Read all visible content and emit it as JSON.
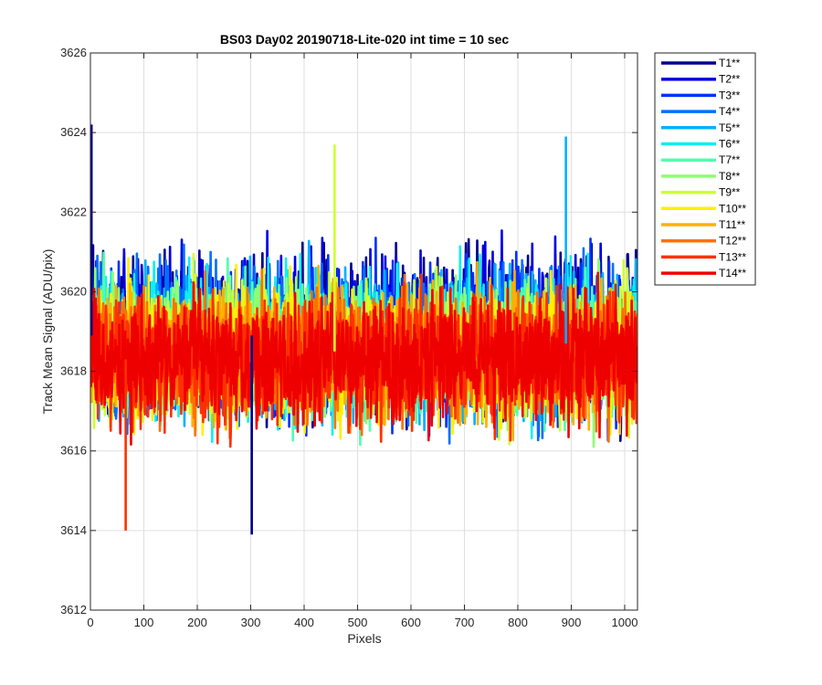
{
  "chart_data": {
    "type": "line",
    "title": "BS03 Day02 20190718-Lite-020 int time = 10 sec",
    "xlabel": "Pixels",
    "ylabel": "Track Mean Signal (ADU/pix)",
    "xlim": [
      0,
      1024
    ],
    "ylim": [
      3612,
      3626
    ],
    "xticks": [
      0,
      100,
      200,
      300,
      400,
      500,
      600,
      700,
      800,
      900,
      1000
    ],
    "yticks": [
      3612,
      3614,
      3616,
      3618,
      3620,
      3622,
      3624,
      3626
    ],
    "grid": true,
    "legend_position": "outside-right-top",
    "n_points_per_series": 1024,
    "series": [
      {
        "name": "T1**",
        "color": "#00008f",
        "center": 3618.9,
        "spread": 1.55
      },
      {
        "name": "T2**",
        "color": "#0000df",
        "center": 3618.9,
        "spread": 1.5
      },
      {
        "name": "T3**",
        "color": "#0030ff",
        "center": 3618.8,
        "spread": 1.45
      },
      {
        "name": "T4**",
        "color": "#0070ff",
        "center": 3618.8,
        "spread": 1.4
      },
      {
        "name": "T5**",
        "color": "#00b0ff",
        "center": 3618.7,
        "spread": 1.4
      },
      {
        "name": "T6**",
        "color": "#10efef",
        "center": 3618.7,
        "spread": 1.35
      },
      {
        "name": "T7**",
        "color": "#50ffaf",
        "center": 3618.6,
        "spread": 1.35
      },
      {
        "name": "T8**",
        "color": "#8fff70",
        "center": 3618.6,
        "spread": 1.3
      },
      {
        "name": "T9**",
        "color": "#cfff30",
        "center": 3618.5,
        "spread": 1.3
      },
      {
        "name": "T10**",
        "color": "#ffef00",
        "center": 3618.4,
        "spread": 1.25
      },
      {
        "name": "T11**",
        "color": "#ffb000",
        "center": 3618.4,
        "spread": 1.25
      },
      {
        "name": "T12**",
        "color": "#ff7000",
        "center": 3618.4,
        "spread": 1.25
      },
      {
        "name": "T13**",
        "color": "#ff3000",
        "center": 3618.3,
        "spread": 1.25
      },
      {
        "name": "T14**",
        "color": "#ef0000",
        "center": 3618.3,
        "spread": 1.2
      }
    ],
    "notable_points": [
      {
        "series": "T1**",
        "x": 2,
        "y": 3624.2
      },
      {
        "series": "T1**",
        "x": 302,
        "y": 3613.9
      },
      {
        "series": "T9**",
        "x": 457,
        "y": 3623.7
      },
      {
        "series": "T5**",
        "x": 890,
        "y": 3623.9
      },
      {
        "series": "T13**",
        "x": 66,
        "y": 3614.0
      }
    ]
  }
}
